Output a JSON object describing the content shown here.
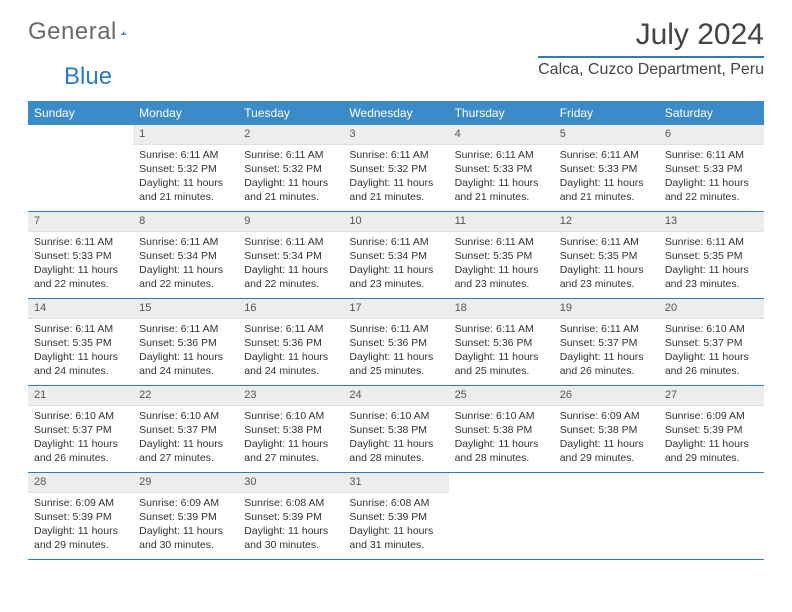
{
  "logo": {
    "text1": "General",
    "text2": "Blue"
  },
  "title": "July 2024",
  "location": "Calca, Cuzco Department, Peru",
  "colors": {
    "header_bg": "#3b8bc9",
    "rule": "#2f7bbf",
    "daybar_bg": "#eceeee",
    "text": "#333333",
    "logo_gray": "#6a6a6a"
  },
  "day_names": [
    "Sunday",
    "Monday",
    "Tuesday",
    "Wednesday",
    "Thursday",
    "Friday",
    "Saturday"
  ],
  "first_weekday": 1,
  "num_days": 31,
  "days": {
    "1": {
      "sr": "6:11 AM",
      "ss": "5:32 PM",
      "dl": "11 hours and 21 minutes."
    },
    "2": {
      "sr": "6:11 AM",
      "ss": "5:32 PM",
      "dl": "11 hours and 21 minutes."
    },
    "3": {
      "sr": "6:11 AM",
      "ss": "5:32 PM",
      "dl": "11 hours and 21 minutes."
    },
    "4": {
      "sr": "6:11 AM",
      "ss": "5:33 PM",
      "dl": "11 hours and 21 minutes."
    },
    "5": {
      "sr": "6:11 AM",
      "ss": "5:33 PM",
      "dl": "11 hours and 21 minutes."
    },
    "6": {
      "sr": "6:11 AM",
      "ss": "5:33 PM",
      "dl": "11 hours and 22 minutes."
    },
    "7": {
      "sr": "6:11 AM",
      "ss": "5:33 PM",
      "dl": "11 hours and 22 minutes."
    },
    "8": {
      "sr": "6:11 AM",
      "ss": "5:34 PM",
      "dl": "11 hours and 22 minutes."
    },
    "9": {
      "sr": "6:11 AM",
      "ss": "5:34 PM",
      "dl": "11 hours and 22 minutes."
    },
    "10": {
      "sr": "6:11 AM",
      "ss": "5:34 PM",
      "dl": "11 hours and 23 minutes."
    },
    "11": {
      "sr": "6:11 AM",
      "ss": "5:35 PM",
      "dl": "11 hours and 23 minutes."
    },
    "12": {
      "sr": "6:11 AM",
      "ss": "5:35 PM",
      "dl": "11 hours and 23 minutes."
    },
    "13": {
      "sr": "6:11 AM",
      "ss": "5:35 PM",
      "dl": "11 hours and 23 minutes."
    },
    "14": {
      "sr": "6:11 AM",
      "ss": "5:35 PM",
      "dl": "11 hours and 24 minutes."
    },
    "15": {
      "sr": "6:11 AM",
      "ss": "5:36 PM",
      "dl": "11 hours and 24 minutes."
    },
    "16": {
      "sr": "6:11 AM",
      "ss": "5:36 PM",
      "dl": "11 hours and 24 minutes."
    },
    "17": {
      "sr": "6:11 AM",
      "ss": "5:36 PM",
      "dl": "11 hours and 25 minutes."
    },
    "18": {
      "sr": "6:11 AM",
      "ss": "5:36 PM",
      "dl": "11 hours and 25 minutes."
    },
    "19": {
      "sr": "6:11 AM",
      "ss": "5:37 PM",
      "dl": "11 hours and 26 minutes."
    },
    "20": {
      "sr": "6:10 AM",
      "ss": "5:37 PM",
      "dl": "11 hours and 26 minutes."
    },
    "21": {
      "sr": "6:10 AM",
      "ss": "5:37 PM",
      "dl": "11 hours and 26 minutes."
    },
    "22": {
      "sr": "6:10 AM",
      "ss": "5:37 PM",
      "dl": "11 hours and 27 minutes."
    },
    "23": {
      "sr": "6:10 AM",
      "ss": "5:38 PM",
      "dl": "11 hours and 27 minutes."
    },
    "24": {
      "sr": "6:10 AM",
      "ss": "5:38 PM",
      "dl": "11 hours and 28 minutes."
    },
    "25": {
      "sr": "6:10 AM",
      "ss": "5:38 PM",
      "dl": "11 hours and 28 minutes."
    },
    "26": {
      "sr": "6:09 AM",
      "ss": "5:38 PM",
      "dl": "11 hours and 29 minutes."
    },
    "27": {
      "sr": "6:09 AM",
      "ss": "5:39 PM",
      "dl": "11 hours and 29 minutes."
    },
    "28": {
      "sr": "6:09 AM",
      "ss": "5:39 PM",
      "dl": "11 hours and 29 minutes."
    },
    "29": {
      "sr": "6:09 AM",
      "ss": "5:39 PM",
      "dl": "11 hours and 30 minutes."
    },
    "30": {
      "sr": "6:08 AM",
      "ss": "5:39 PM",
      "dl": "11 hours and 30 minutes."
    },
    "31": {
      "sr": "6:08 AM",
      "ss": "5:39 PM",
      "dl": "11 hours and 31 minutes."
    }
  },
  "labels": {
    "sunrise": "Sunrise:",
    "sunset": "Sunset:",
    "daylight": "Daylight:"
  }
}
